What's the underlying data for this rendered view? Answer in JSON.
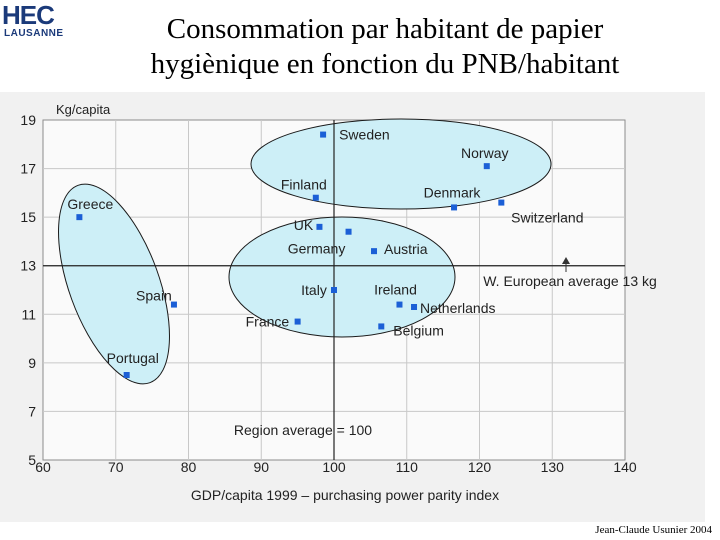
{
  "logo": {
    "mark": "HEC",
    "sub": "LAUSANNE"
  },
  "title_line1": "Consommation par habitant de papier",
  "title_line2": "hygiènique en fonction du PNB/habitant",
  "credit": "Jean-Claude Usunier 2004",
  "colors": {
    "ellipse_fill": "#cdeff7",
    "point": "#1b5fd6",
    "plot_bg": "#fafafa",
    "grid": "#c8c8c8"
  },
  "chart_data": {
    "type": "scatter",
    "xlabel": "GDP/capita 1999 – purchasing power parity index",
    "ylabel": "Kg/capita",
    "xlim": [
      60,
      140
    ],
    "ylim": [
      5,
      19
    ],
    "xticks": [
      "60",
      "70",
      "80",
      "90",
      "100",
      "110",
      "120",
      "130",
      "140"
    ],
    "yticks": [
      "19",
      "17",
      "15",
      "13",
      "11",
      "9",
      "7",
      "5"
    ],
    "grid": true,
    "points": [
      {
        "label": "Sweden",
        "x": 98.5,
        "y": 18.4
      },
      {
        "label": "Norway",
        "x": 121,
        "y": 17.1
      },
      {
        "label": "Finland",
        "x": 97.5,
        "y": 15.8
      },
      {
        "label": "Denmark",
        "x": 116.5,
        "y": 15.4
      },
      {
        "label": "Switzerland",
        "x": 123,
        "y": 15.6
      },
      {
        "label": "Greece",
        "x": 65,
        "y": 15.0
      },
      {
        "label": "UK",
        "x": 98,
        "y": 14.6
      },
      {
        "label": "Germany",
        "x": 102,
        "y": 14.4
      },
      {
        "label": "Austria",
        "x": 105.5,
        "y": 13.6
      },
      {
        "label": "Spain",
        "x": 78,
        "y": 11.4
      },
      {
        "label": "Italy",
        "x": 100,
        "y": 12.0
      },
      {
        "label": "Ireland",
        "x": 109,
        "y": 11.4
      },
      {
        "label": "Netherlands",
        "x": 111,
        "y": 11.3
      },
      {
        "label": "France",
        "x": 95,
        "y": 10.7
      },
      {
        "label": "Belgium",
        "x": 106.5,
        "y": 10.5
      },
      {
        "label": "Portugal",
        "x": 71.5,
        "y": 8.5
      }
    ],
    "annotations": {
      "w_european_average": {
        "label": "W. European average 13 kg",
        "y": 13
      },
      "region_average": {
        "label": "Region average = 100",
        "x": 100
      }
    }
  }
}
